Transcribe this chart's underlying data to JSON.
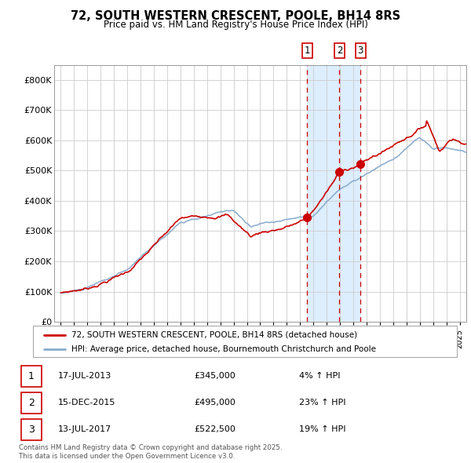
{
  "title": "72, SOUTH WESTERN CRESCENT, POOLE, BH14 8RS",
  "subtitle": "Price paid vs. HM Land Registry's House Price Index (HPI)",
  "legend_house": "72, SOUTH WESTERN CRESCENT, POOLE, BH14 8RS (detached house)",
  "legend_hpi": "HPI: Average price, detached house, Bournemouth Christchurch and Poole",
  "transactions": [
    {
      "num": 1,
      "date": "17-JUL-2013",
      "price": "£345,000",
      "change": "4% ↑ HPI",
      "year": 2013.54
    },
    {
      "num": 2,
      "date": "15-DEC-2015",
      "price": "£495,000",
      "change": "23% ↑ HPI",
      "year": 2015.96
    },
    {
      "num": 3,
      "date": "13-JUL-2017",
      "price": "£522,500",
      "change": "19% ↑ HPI",
      "year": 2017.54
    }
  ],
  "footnote": "Contains HM Land Registry data © Crown copyright and database right 2025.\nThis data is licensed under the Open Government Licence v3.0.",
  "house_color": "#cc0000",
  "hpi_color": "#88aacc",
  "background_color": "#ddeeff",
  "plot_bg": "#ffffff",
  "grid_color": "#cccccc",
  "dashed_color": "#cc0000",
  "ylim": [
    0,
    850000
  ],
  "yticks": [
    0,
    100000,
    200000,
    300000,
    400000,
    500000,
    600000,
    700000,
    800000
  ],
  "ytick_labels": [
    "£0",
    "£100K",
    "£200K",
    "£300K",
    "£400K",
    "£500K",
    "£600K",
    "£700K",
    "£800K"
  ],
  "xlim_start": 1994.5,
  "xlim_end": 2025.5,
  "t1_year": 2013.54,
  "t1_price": 345000,
  "t2_year": 2015.958,
  "t2_price": 495000,
  "t3_year": 2017.54,
  "t3_price": 522500
}
